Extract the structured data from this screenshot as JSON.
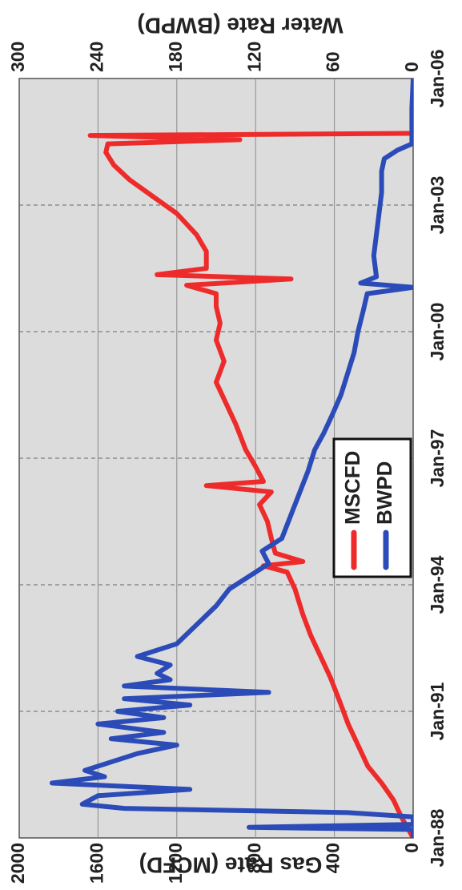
{
  "chart_data": {
    "type": "line",
    "title": "",
    "orientation": "rotated 90° clockwise",
    "x_axis": {
      "label": "",
      "ticks": [
        "Jan-88",
        "Jan-91",
        "Jan-94",
        "Jan-97",
        "Jan-00",
        "Jan-03",
        "Jan-06"
      ],
      "range": [
        1988.0,
        2006.0
      ]
    },
    "y_left": {
      "label": "Gas Rate (MCFD)",
      "range": [
        0,
        2000
      ],
      "ticks": [
        "0",
        "400",
        "800",
        "1200",
        "1600",
        "2000"
      ]
    },
    "y_right": {
      "label": "Water Rate (BWPD)",
      "range": [
        0,
        300
      ],
      "ticks": [
        "0",
        "60",
        "120",
        "180",
        "240",
        "300"
      ]
    },
    "grid": true,
    "legend_position": "center",
    "series": [
      {
        "name": "MSCFD",
        "axis": "left",
        "color": "#ee2b2b",
        "points": [
          [
            1988.0,
            0
          ],
          [
            1988.5,
            60
          ],
          [
            1988.9,
            100
          ],
          [
            1989.3,
            160
          ],
          [
            1989.7,
            230
          ],
          [
            1990.2,
            280
          ],
          [
            1990.7,
            330
          ],
          [
            1991.2,
            370
          ],
          [
            1991.8,
            420
          ],
          [
            1992.3,
            470
          ],
          [
            1992.8,
            520
          ],
          [
            1993.3,
            560
          ],
          [
            1993.9,
            600
          ],
          [
            1994.3,
            640
          ],
          [
            1994.45,
            760
          ],
          [
            1994.55,
            560
          ],
          [
            1994.75,
            700
          ],
          [
            1995.1,
            720
          ],
          [
            1995.5,
            740
          ],
          [
            1995.9,
            780
          ],
          [
            1996.2,
            720
          ],
          [
            1996.35,
            1050
          ],
          [
            1996.45,
            760
          ],
          [
            1996.8,
            800
          ],
          [
            1997.2,
            850
          ],
          [
            1997.8,
            900
          ],
          [
            1998.3,
            950
          ],
          [
            1998.8,
            1000
          ],
          [
            1999.3,
            960
          ],
          [
            1999.8,
            1000
          ],
          [
            2000.2,
            980
          ],
          [
            2000.6,
            1000
          ],
          [
            2000.9,
            1000
          ],
          [
            2001.1,
            1150
          ],
          [
            2001.25,
            620
          ],
          [
            2001.35,
            1300
          ],
          [
            2001.5,
            1050
          ],
          [
            2001.9,
            1050
          ],
          [
            2002.3,
            1100
          ],
          [
            2002.8,
            1200
          ],
          [
            2003.2,
            1320
          ],
          [
            2003.6,
            1440
          ],
          [
            2003.95,
            1520
          ],
          [
            2004.25,
            1560
          ],
          [
            2004.45,
            1550
          ],
          [
            2004.55,
            880
          ],
          [
            2004.65,
            1640
          ],
          [
            2004.7,
            0
          ]
        ]
      },
      {
        "name": "BWPD",
        "axis": "right",
        "color": "#2b4bb8",
        "points": [
          [
            1988.0,
            0
          ],
          [
            1988.2,
            0
          ],
          [
            1988.25,
            125
          ],
          [
            1988.32,
            0
          ],
          [
            1988.5,
            0
          ],
          [
            1988.6,
            50
          ],
          [
            1988.7,
            220
          ],
          [
            1988.8,
            252
          ],
          [
            1989.0,
            240
          ],
          [
            1989.15,
            170
          ],
          [
            1989.3,
            275
          ],
          [
            1989.45,
            235
          ],
          [
            1989.6,
            250
          ],
          [
            1989.8,
            230
          ],
          [
            1990.0,
            210
          ],
          [
            1990.2,
            180
          ],
          [
            1990.35,
            230
          ],
          [
            1990.5,
            190
          ],
          [
            1990.7,
            240
          ],
          [
            1990.85,
            190
          ],
          [
            1991.0,
            225
          ],
          [
            1991.15,
            170
          ],
          [
            1991.3,
            220
          ],
          [
            1991.45,
            110
          ],
          [
            1991.6,
            220
          ],
          [
            1991.75,
            185
          ],
          [
            1991.9,
            195
          ],
          [
            1992.1,
            185
          ],
          [
            1992.3,
            210
          ],
          [
            1992.6,
            180
          ],
          [
            1992.9,
            170
          ],
          [
            1993.2,
            160
          ],
          [
            1993.5,
            150
          ],
          [
            1993.9,
            140
          ],
          [
            1994.2,
            125
          ],
          [
            1994.5,
            110
          ],
          [
            1994.8,
            115
          ],
          [
            1995.1,
            100
          ],
          [
            1995.5,
            95
          ],
          [
            1995.9,
            90
          ],
          [
            1996.3,
            85
          ],
          [
            1996.7,
            80
          ],
          [
            1997.2,
            75
          ],
          [
            1997.6,
            68
          ],
          [
            1998.0,
            62
          ],
          [
            1998.5,
            55
          ],
          [
            1999.0,
            50
          ],
          [
            1999.5,
            45
          ],
          [
            2000.0,
            42
          ],
          [
            2000.5,
            38
          ],
          [
            2000.9,
            35
          ],
          [
            2001.05,
            0
          ],
          [
            2001.15,
            40
          ],
          [
            2001.3,
            28
          ],
          [
            2001.8,
            30
          ],
          [
            2002.3,
            28
          ],
          [
            2002.8,
            26
          ],
          [
            2003.3,
            24
          ],
          [
            2003.8,
            24
          ],
          [
            2004.1,
            22
          ],
          [
            2004.3,
            12
          ],
          [
            2004.45,
            1
          ],
          [
            2005.3,
            1
          ],
          [
            2006.0,
            0
          ]
        ]
      }
    ]
  }
}
